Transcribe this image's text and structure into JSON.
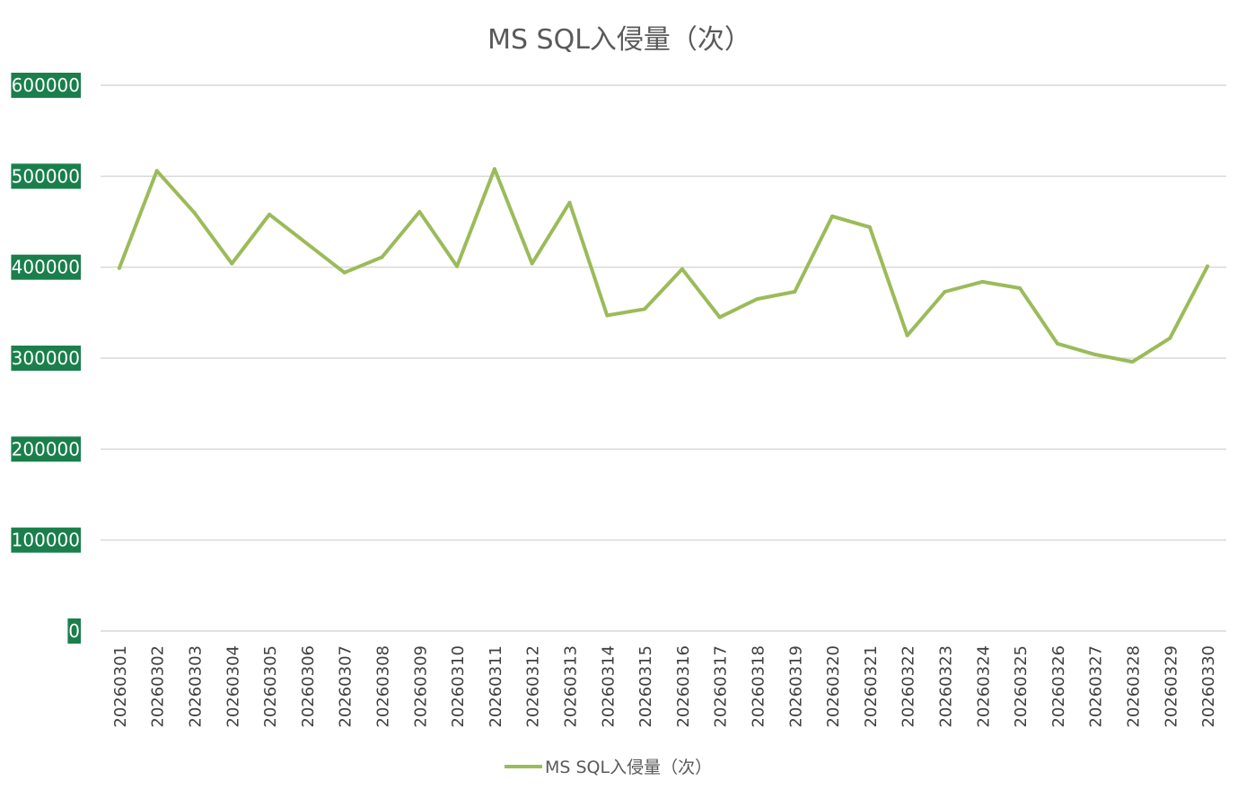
{
  "chart_data": {
    "type": "line",
    "title": "MS SQL入侵量（次）",
    "xlabel": "",
    "ylabel": "",
    "ylim": [
      0,
      600000
    ],
    "yticks": [
      "0",
      "100000",
      "200000",
      "300000",
      "400000",
      "500000",
      "600000"
    ],
    "categories": [
      "20260301",
      "20260302",
      "20260303",
      "20260304",
      "20260305",
      "20260306",
      "20260307",
      "20260308",
      "20260309",
      "20260310",
      "20260311",
      "20260312",
      "20260313",
      "20260314",
      "20260315",
      "20260316",
      "20260317",
      "20260318",
      "20260319",
      "20260320",
      "20260321",
      "20260322",
      "20260323",
      "20260324",
      "20260325",
      "20260326",
      "20260327",
      "20260328",
      "20260329",
      "20260330"
    ],
    "series": [
      {
        "name": "MS SQL入侵量（次）",
        "color": "#9bbb59",
        "values": [
          399000,
          506000,
          460000,
          404000,
          458000,
          426000,
          394000,
          411000,
          461000,
          401000,
          508000,
          404000,
          471000,
          347000,
          354000,
          398000,
          345000,
          365000,
          373000,
          456000,
          444000,
          325000,
          373000,
          384000,
          377000,
          316000,
          304000,
          296000,
          322000,
          401000
        ]
      }
    ],
    "grid": true,
    "legend": "bottom",
    "ytick_label_background": "#1a7f4b",
    "gridline_color": "#d9d9d9"
  }
}
